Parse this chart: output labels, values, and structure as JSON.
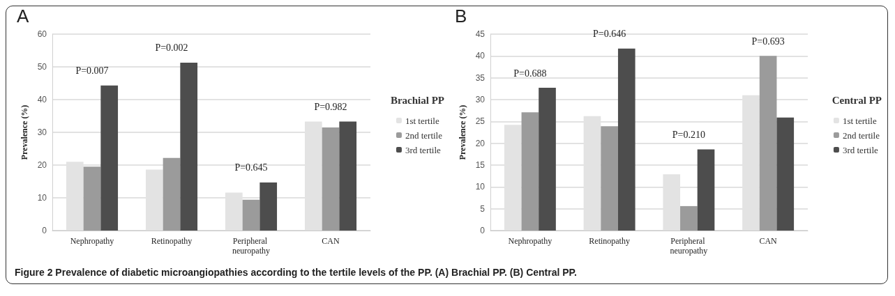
{
  "chart_data": [
    {
      "type": "bar",
      "title": "A",
      "ylabel": "Prevalence (%)",
      "legend_title": "Brachial PP",
      "categories": [
        "Nephropathy",
        "Retinopathy",
        "Peripheral neuropathy",
        "CAN"
      ],
      "series": [
        {
          "name": "1st tertile",
          "color": "#e3e3e3",
          "values": [
            21.0,
            18.6,
            11.6,
            33.3
          ]
        },
        {
          "name": "2nd tertile",
          "color": "#9b9b9b",
          "values": [
            19.5,
            22.2,
            9.4,
            31.5
          ]
        },
        {
          "name": "3rd tertile",
          "color": "#4d4d4d",
          "values": [
            44.3,
            51.3,
            14.7,
            33.3
          ]
        }
      ],
      "ylim": [
        0,
        60
      ],
      "yticks": [
        0,
        10,
        20,
        30,
        40,
        50,
        60
      ],
      "grid": "y",
      "legend": "right",
      "annotations": [
        "P=0.007",
        "P=0.002",
        "P=0.645",
        "P=0.982",
        "Figure 2 Prevalence of diabetic microangiopathies according to the tertile levels of the PP. (A) Brachial PP. (B) Central PP."
      ]
    },
    {
      "type": "bar",
      "title": "B",
      "ylabel": "Prevalence (%)",
      "legend_title": "Central PP",
      "categories": [
        "Nephropathy",
        "Retinopathy",
        "Peripheral neuropathy",
        "CAN"
      ],
      "series": [
        {
          "name": "1st tertile",
          "color": "#e3e3e3",
          "values": [
            24.2,
            26.2,
            12.9,
            31.0
          ]
        },
        {
          "name": "2nd tertile",
          "color": "#9b9b9b",
          "values": [
            27.1,
            23.9,
            5.6,
            40.0
          ]
        },
        {
          "name": "3rd tertile",
          "color": "#4d4d4d",
          "values": [
            32.7,
            41.7,
            18.6,
            25.9
          ]
        }
      ],
      "ylim": [
        0,
        45
      ],
      "yticks": [
        0,
        5,
        10,
        15,
        20,
        25,
        30,
        35,
        40,
        45
      ],
      "grid": "y",
      "legend": "right",
      "annotations": [
        "P=0.688",
        "P=0.646",
        "P=0.210",
        "P=0.693"
      ]
    }
  ]
}
